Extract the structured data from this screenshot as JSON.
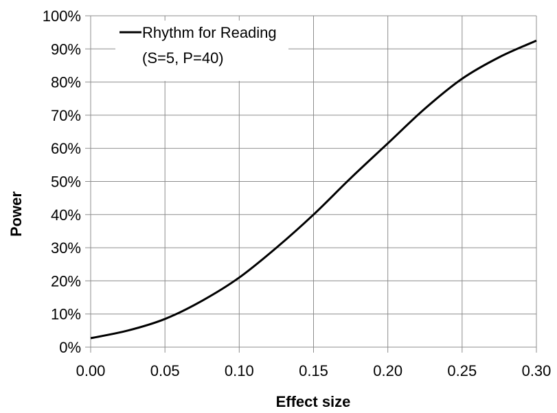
{
  "chart_data": {
    "type": "line",
    "title": "",
    "xlabel": "Effect size",
    "ylabel": "Power",
    "xlim": [
      0,
      0.3
    ],
    "ylim": [
      0,
      1
    ],
    "x_ticks": [
      "0.00",
      "0.05",
      "0.10",
      "0.15",
      "0.20",
      "0.25",
      "0.30"
    ],
    "y_ticks": [
      "0%",
      "10%",
      "20%",
      "30%",
      "40%",
      "50%",
      "60%",
      "70%",
      "80%",
      "90%",
      "100%"
    ],
    "grid": true,
    "legend_position": "top-left",
    "series": [
      {
        "name": "Rhythm for Reading",
        "name_line2": "(S=5, P=40)",
        "color": "#000000",
        "x": [
          0.0,
          0.025,
          0.05,
          0.075,
          0.1,
          0.125,
          0.15,
          0.175,
          0.2,
          0.225,
          0.25,
          0.275,
          0.3
        ],
        "y": [
          0.027,
          0.05,
          0.085,
          0.14,
          0.21,
          0.3,
          0.4,
          0.51,
          0.615,
          0.72,
          0.81,
          0.875,
          0.925
        ]
      }
    ]
  }
}
